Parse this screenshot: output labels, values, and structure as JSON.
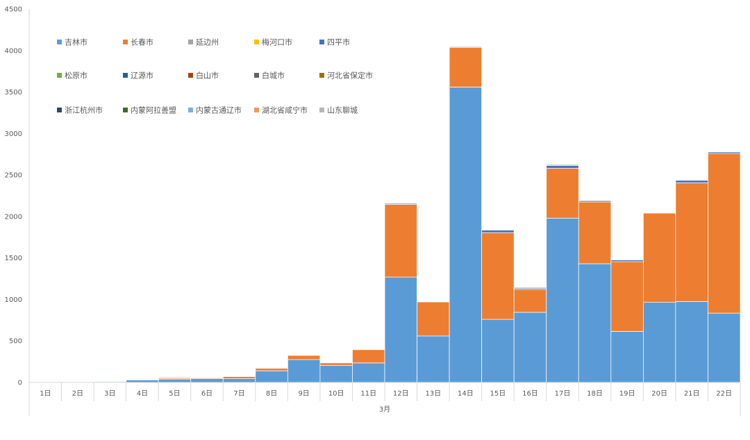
{
  "chart_data": {
    "type": "bar",
    "stacked": true,
    "title": "",
    "xlabel": "3月",
    "ylabel": "",
    "ylim": [
      0,
      4500
    ],
    "yticks": [
      0,
      500,
      1000,
      1500,
      2000,
      2500,
      3000,
      3500,
      4000,
      4500
    ],
    "grid": false,
    "legend_position": "top-left",
    "categories": [
      "1日",
      "2日",
      "3日",
      "4日",
      "5日",
      "6日",
      "7日",
      "8日",
      "9日",
      "10日",
      "11日",
      "12日",
      "13日",
      "14日",
      "15日",
      "16日",
      "17日",
      "18日",
      "19日",
      "20日",
      "21日",
      "22日"
    ],
    "series": [
      {
        "name": "吉林市",
        "color": "#5B9BD5",
        "values": [
          2,
          3,
          10,
          30,
          40,
          45,
          45,
          140,
          275,
          205,
          235,
          1270,
          560,
          3560,
          760,
          845,
          1980,
          1430,
          615,
          965,
          975,
          835
        ]
      },
      {
        "name": "长春市",
        "color": "#ED7D31",
        "values": [
          0,
          0,
          0,
          5,
          12,
          12,
          25,
          30,
          50,
          30,
          160,
          875,
          410,
          475,
          1045,
          275,
          600,
          745,
          840,
          1075,
          1430,
          1920
        ]
      },
      {
        "name": "延边州",
        "color": "#A5A5A5",
        "values": [
          0,
          0,
          0,
          0,
          5,
          0,
          0,
          0,
          0,
          0,
          0,
          0,
          0,
          0,
          0,
          0,
          0,
          0,
          0,
          0,
          0,
          0
        ]
      },
      {
        "name": "梅河口市",
        "color": "#FFC000",
        "values": [
          0,
          0,
          0,
          3,
          0,
          3,
          5,
          0,
          0,
          0,
          5,
          0,
          0,
          0,
          0,
          0,
          0,
          0,
          0,
          0,
          0,
          0
        ]
      },
      {
        "name": "四平市",
        "color": "#4472C4",
        "values": [
          0,
          0,
          4,
          0,
          0,
          0,
          0,
          0,
          0,
          0,
          0,
          0,
          5,
          10,
          30,
          15,
          35,
          15,
          20,
          5,
          30,
          20
        ]
      },
      {
        "name": "松原市",
        "color": "#70AD47",
        "values": [
          0,
          0,
          0,
          4,
          0,
          0,
          0,
          5,
          0,
          0,
          0,
          0,
          0,
          0,
          0,
          10,
          10,
          0,
          0,
          0,
          0,
          0
        ]
      },
      {
        "name": "辽源市",
        "color": "#255E91",
        "values": [
          0,
          0,
          4,
          0,
          0,
          0,
          0,
          0,
          0,
          0,
          0,
          0,
          0,
          0,
          0,
          0,
          0,
          0,
          0,
          0,
          0,
          0
        ]
      },
      {
        "name": "白山市",
        "color": "#9E480E",
        "values": [
          0,
          0,
          0,
          0,
          5,
          0,
          0,
          0,
          0,
          0,
          0,
          0,
          0,
          0,
          0,
          0,
          0,
          0,
          0,
          0,
          0,
          0
        ]
      },
      {
        "name": "白城市",
        "color": "#636363",
        "values": [
          0,
          0,
          0,
          0,
          8,
          0,
          0,
          5,
          0,
          0,
          0,
          0,
          0,
          0,
          0,
          0,
          0,
          0,
          0,
          0,
          0,
          0
        ]
      },
      {
        "name": "河北省保定市",
        "color": "#997300",
        "values": [
          0,
          0,
          0,
          0,
          0,
          0,
          0,
          0,
          0,
          0,
          0,
          0,
          0,
          0,
          0,
          0,
          0,
          0,
          0,
          0,
          0,
          0
        ]
      },
      {
        "name": "浙江杭州市",
        "color": "#264478",
        "values": [
          0,
          0,
          0,
          0,
          0,
          0,
          0,
          0,
          0,
          0,
          0,
          0,
          0,
          0,
          0,
          0,
          0,
          0,
          0,
          0,
          0,
          0
        ]
      },
      {
        "name": "内蒙阿拉善盟",
        "color": "#43682B",
        "values": [
          0,
          0,
          0,
          0,
          0,
          0,
          0,
          0,
          0,
          0,
          0,
          0,
          0,
          0,
          0,
          0,
          0,
          0,
          0,
          0,
          0,
          0
        ]
      },
      {
        "name": "内蒙古通辽市",
        "color": "#7CAFDD",
        "values": [
          0,
          0,
          0,
          0,
          0,
          0,
          0,
          0,
          0,
          0,
          0,
          15,
          0,
          0,
          0,
          0,
          0,
          0,
          0,
          0,
          0,
          0
        ]
      },
      {
        "name": "湖北省咸宁市",
        "color": "#F1975A",
        "values": [
          0,
          0,
          0,
          0,
          0,
          0,
          0,
          0,
          0,
          0,
          0,
          0,
          0,
          0,
          0,
          0,
          0,
          0,
          0,
          0,
          0,
          0
        ]
      },
      {
        "name": "山东聊城",
        "color": "#B7B7B7",
        "values": [
          0,
          0,
          0,
          0,
          0,
          0,
          0,
          0,
          0,
          0,
          0,
          0,
          0,
          0,
          0,
          0,
          0,
          0,
          0,
          5,
          0,
          0
        ]
      }
    ]
  }
}
